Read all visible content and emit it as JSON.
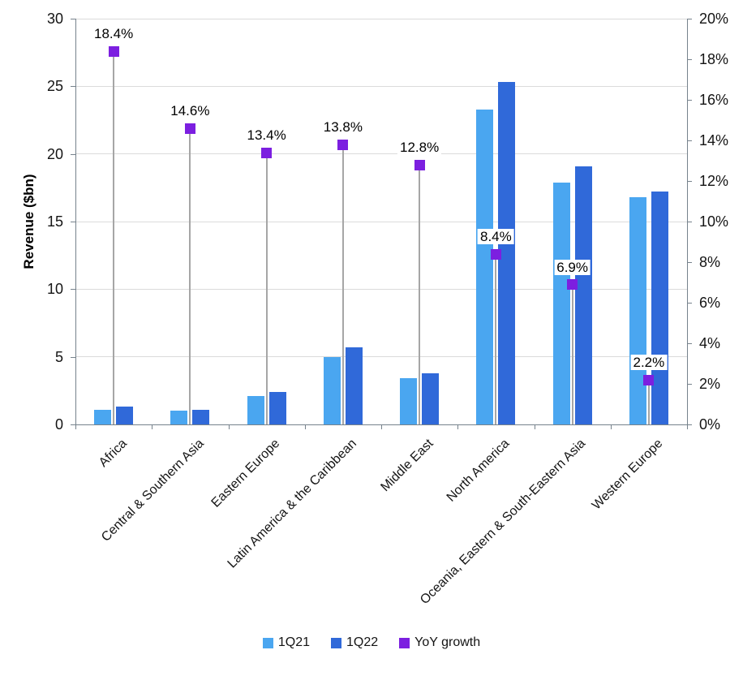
{
  "chart_data": {
    "type": "bar",
    "title": "",
    "ylabel": "Revenue ($bn)",
    "xlabel": "",
    "categories": [
      "Africa",
      "Central & Southern Asia",
      "Eastern Europe",
      "Latin America & the Caribbean",
      "Middle East",
      "North America",
      "Oceania, Eastern & South-Eastern Asia",
      "Western Europe"
    ],
    "series": [
      {
        "name": "1Q21",
        "type": "bar",
        "axis": "left",
        "color": "#4AA6F0",
        "values": [
          1.1,
          1.0,
          2.1,
          5.0,
          3.4,
          23.3,
          17.9,
          16.8
        ]
      },
      {
        "name": "1Q22",
        "type": "bar",
        "axis": "left",
        "color": "#3069D9",
        "values": [
          1.3,
          1.1,
          2.4,
          5.7,
          3.8,
          25.3,
          19.1,
          17.2
        ]
      },
      {
        "name": "YoY growth",
        "type": "marker",
        "axis": "right",
        "color": "#7C1FE0",
        "values": [
          18.4,
          14.6,
          13.4,
          13.8,
          12.8,
          8.4,
          6.9,
          2.2
        ],
        "labels": [
          "18.4%",
          "14.6%",
          "13.4%",
          "13.8%",
          "12.8%",
          "8.4%",
          "6.9%",
          "2.2%"
        ]
      }
    ],
    "left_axis": {
      "min": 0,
      "max": 30,
      "ticks": [
        0,
        5,
        10,
        15,
        20,
        25,
        30
      ]
    },
    "right_axis": {
      "min": 0,
      "max": 20,
      "tick_labels": [
        "0%",
        "2%",
        "4%",
        "6%",
        "8%",
        "10%",
        "12%",
        "14%",
        "16%",
        "18%",
        "20%"
      ]
    },
    "legend_position": "bottom",
    "grid": "horizontal",
    "colors": {
      "gridline": "#DBDBDB",
      "axis": "#76828C",
      "dropline": "#A6A6A6",
      "text": "#141414"
    }
  }
}
